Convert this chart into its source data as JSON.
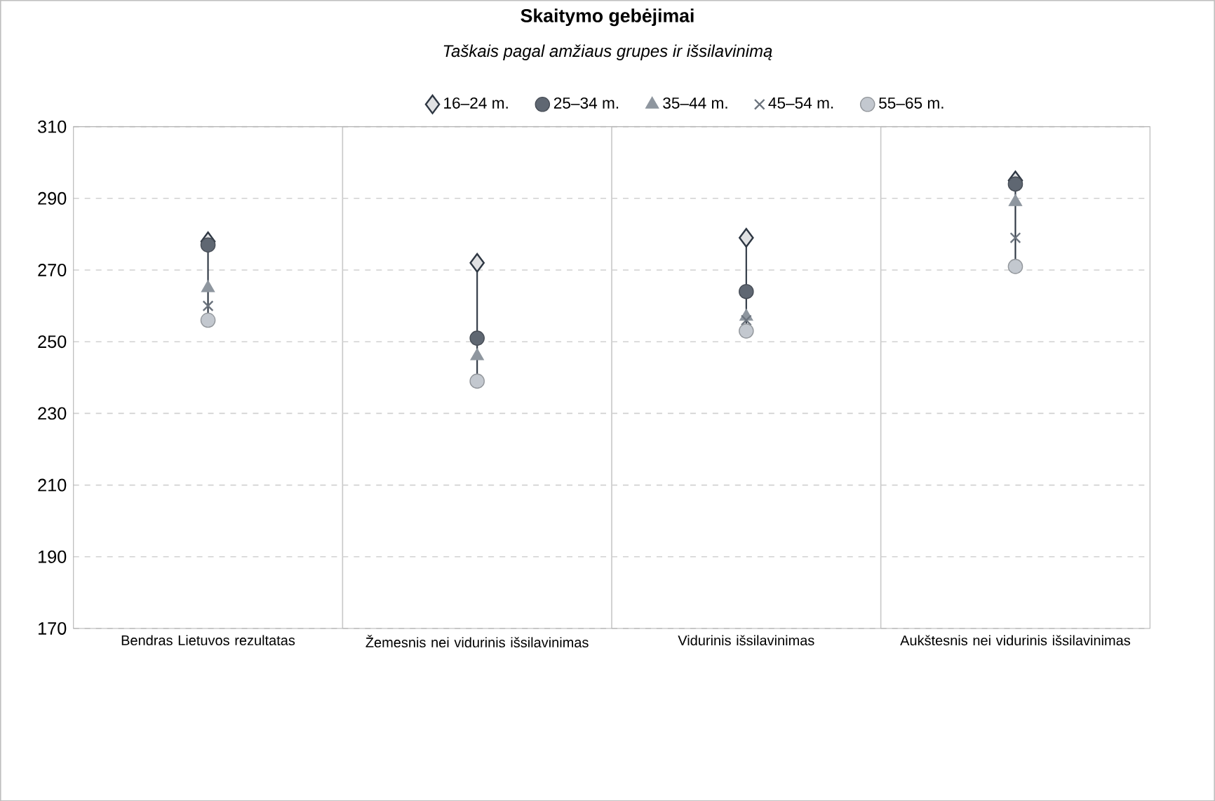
{
  "chart_data": {
    "type": "scatter",
    "title": "Skaitymo gebėjimai",
    "subtitle": "Taškais pagal amžiaus grupes ir išsilavinimą",
    "categories": [
      "Bendras Lietuvos rezultatas",
      "Žemesnis nei vidurinis išsilavinimas",
      "Vidurinis išsilavinimas",
      "Aukštesnis nei vidurinis išsilavinimas"
    ],
    "series": [
      {
        "name": "16–24 m.",
        "color": "#2e3743",
        "marker": "diamond",
        "values": [
          278,
          272,
          279,
          295
        ]
      },
      {
        "name": "25–34 m.",
        "color": "#5f6772",
        "marker": "circle",
        "values": [
          277,
          251,
          264,
          294
        ]
      },
      {
        "name": "35–44 m.",
        "color": "#8e969f",
        "marker": "triangle",
        "values": [
          265,
          246,
          257,
          289
        ]
      },
      {
        "name": "45–54 m.",
        "color": "#6b737d",
        "marker": "cross",
        "values": [
          260,
          null,
          256,
          279
        ]
      },
      {
        "name": "55–65 m.",
        "color": "#c3c8cf",
        "marker": "circle",
        "values": [
          256,
          239,
          253,
          271
        ]
      }
    ],
    "ylim": [
      170,
      310
    ],
    "yticks": [
      170,
      190,
      210,
      230,
      250,
      270,
      290,
      310
    ],
    "grid": "y",
    "legend": "top"
  }
}
